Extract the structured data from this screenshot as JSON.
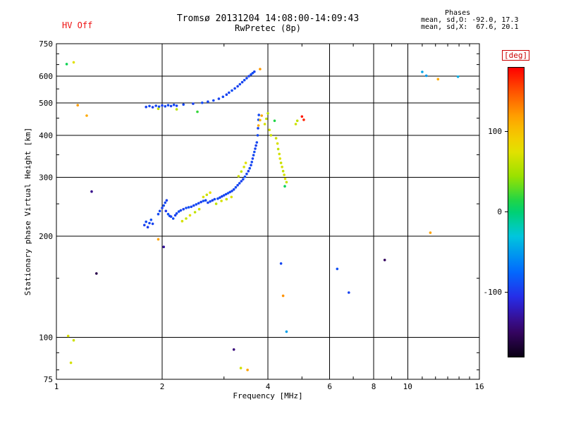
{
  "header": {
    "hv_status": "HV Off",
    "title": "Tromsø 20131204 14:08:00-14:09:43",
    "subtitle": "RwPretec (8p)",
    "phases": {
      "title": "Phases",
      "o_line": "mean, sd,O: -92.0, 17.3",
      "x_line": "mean, sd,X:  67.6, 20.1"
    }
  },
  "chart_data": {
    "type": "scatter",
    "title": "Tromsø 20131204 14:08:00-14:09:43",
    "subtitle": "RwPretec (8p)",
    "xlabel": "Frequency [MHz]",
    "ylabel": "Stationary phase Virtual Height [km]",
    "xscale": "log",
    "yscale": "log",
    "xlim": [
      1,
      16
    ],
    "ylim": [
      75,
      750
    ],
    "xticks": [
      1,
      2,
      4,
      6,
      8,
      10,
      16
    ],
    "yticks": [
      75,
      100,
      200,
      300,
      400,
      500,
      600,
      750
    ],
    "x_gridlines": [
      2,
      4,
      6,
      8,
      10
    ],
    "y_gridlines": [
      100,
      200,
      300,
      400,
      500,
      600
    ],
    "x_minor_ticks": [
      3,
      5,
      7,
      9,
      11,
      12,
      13,
      14,
      15
    ],
    "y_minor_ticks": [
      80,
      90,
      150,
      250,
      350,
      450,
      550,
      650,
      700
    ],
    "grid": true,
    "legend": "none",
    "colorbar": {
      "label": "[deg]",
      "min": -180,
      "max": 180,
      "ticks": [
        100,
        0,
        -100
      ],
      "label_color": "#cc0000"
    },
    "point_unit": "[frequency_MHz, virtual_height_km, phase_deg]",
    "points": [
      [
        1.78,
        216,
        -95
      ],
      [
        1.8,
        221,
        -90
      ],
      [
        1.82,
        213,
        -98
      ],
      [
        1.84,
        219,
        -92
      ],
      [
        1.86,
        224,
        -88
      ],
      [
        1.88,
        218,
        -94
      ],
      [
        1.95,
        233,
        -90
      ],
      [
        1.97,
        238,
        -93
      ],
      [
        2.0,
        243,
        -96
      ],
      [
        2.02,
        247,
        -89
      ],
      [
        2.04,
        252,
        -92
      ],
      [
        2.06,
        256,
        -95
      ],
      [
        2.05,
        238,
        -100
      ],
      [
        2.08,
        233,
        -87
      ],
      [
        2.1,
        230,
        -91
      ],
      [
        2.12,
        229,
        -94
      ],
      [
        2.15,
        226,
        -90
      ],
      [
        2.18,
        231,
        -96
      ],
      [
        2.2,
        234,
        -92
      ],
      [
        2.23,
        237,
        -89
      ],
      [
        2.26,
        239,
        -93
      ],
      [
        2.3,
        241,
        -95
      ],
      [
        2.34,
        243,
        -91
      ],
      [
        2.38,
        244,
        -88
      ],
      [
        2.42,
        245,
        -92
      ],
      [
        2.46,
        247,
        -95
      ],
      [
        2.5,
        249,
        -90
      ],
      [
        2.54,
        251,
        -93
      ],
      [
        2.58,
        253,
        -96
      ],
      [
        2.62,
        255,
        -89
      ],
      [
        2.66,
        256,
        -92
      ],
      [
        2.7,
        252,
        -94
      ],
      [
        2.74,
        254,
        -91
      ],
      [
        2.78,
        256,
        -95
      ],
      [
        2.82,
        258,
        -92
      ],
      [
        2.88,
        259,
        -90
      ],
      [
        2.92,
        261,
        -93
      ],
      [
        2.96,
        263,
        -96
      ],
      [
        3.0,
        265,
        -91
      ],
      [
        3.04,
        267,
        -94
      ],
      [
        3.08,
        269,
        -89
      ],
      [
        3.12,
        271,
        -92
      ],
      [
        3.16,
        273,
        -95
      ],
      [
        3.2,
        276,
        -93
      ],
      [
        3.24,
        280,
        -90
      ],
      [
        3.28,
        284,
        -94
      ],
      [
        3.32,
        288,
        -91
      ],
      [
        3.36,
        292,
        -95
      ],
      [
        3.4,
        296,
        -92
      ],
      [
        3.44,
        301,
        -89
      ],
      [
        3.48,
        307,
        -93
      ],
      [
        3.52,
        313,
        -96
      ],
      [
        3.55,
        319,
        -90
      ],
      [
        3.58,
        326,
        -94
      ],
      [
        3.6,
        333,
        -91
      ],
      [
        3.62,
        341,
        -95
      ],
      [
        3.64,
        349,
        -92
      ],
      [
        3.66,
        357,
        -89
      ],
      [
        3.68,
        365,
        -93
      ],
      [
        3.7,
        373,
        -96
      ],
      [
        3.72,
        381,
        -91
      ],
      [
        3.74,
        400,
        -90
      ],
      [
        3.75,
        420,
        -93
      ],
      [
        3.76,
        445,
        -88
      ],
      [
        3.77,
        460,
        -91
      ],
      [
        1.8,
        486,
        -94
      ],
      [
        1.84,
        489,
        -91
      ],
      [
        1.88,
        485,
        -96
      ],
      [
        1.92,
        490,
        -92
      ],
      [
        1.96,
        487,
        -89
      ],
      [
        2.0,
        491,
        -95
      ],
      [
        2.04,
        488,
        -92
      ],
      [
        2.08,
        492,
        -90
      ],
      [
        2.12,
        489,
        -94
      ],
      [
        2.16,
        493,
        -91
      ],
      [
        2.2,
        490,
        -93
      ],
      [
        2.3,
        494,
        -92
      ],
      [
        2.45,
        497,
        -95
      ],
      [
        2.6,
        500,
        -90
      ],
      [
        2.7,
        504,
        -93
      ],
      [
        2.8,
        508,
        -91
      ],
      [
        2.9,
        514,
        -94
      ],
      [
        2.98,
        521,
        -91
      ],
      [
        3.05,
        529,
        -95
      ],
      [
        3.1,
        536,
        -92
      ],
      [
        3.16,
        544,
        -89
      ],
      [
        3.22,
        552,
        -93
      ],
      [
        3.28,
        560,
        -96
      ],
      [
        3.33,
        568,
        -91
      ],
      [
        3.38,
        576,
        -94
      ],
      [
        3.43,
        584,
        -90
      ],
      [
        3.48,
        592,
        -93
      ],
      [
        3.53,
        600,
        -95
      ],
      [
        3.58,
        607,
        -92
      ],
      [
        3.62,
        613,
        -89
      ],
      [
        3.66,
        619,
        -93
      ],
      [
        2.28,
        222,
        70
      ],
      [
        2.34,
        226,
        64
      ],
      [
        2.4,
        231,
        76
      ],
      [
        2.48,
        236,
        60
      ],
      [
        2.55,
        241,
        68
      ],
      [
        2.62,
        262,
        72
      ],
      [
        2.68,
        266,
        65
      ],
      [
        2.74,
        270,
        78
      ],
      [
        2.85,
        250,
        62
      ],
      [
        2.95,
        255,
        70
      ],
      [
        3.05,
        258,
        66
      ],
      [
        3.15,
        262,
        74
      ],
      [
        3.3,
        302,
        68
      ],
      [
        3.36,
        312,
        62
      ],
      [
        3.42,
        322,
        70
      ],
      [
        3.46,
        331,
        76
      ],
      [
        4.22,
        392,
        66
      ],
      [
        4.26,
        378,
        72
      ],
      [
        4.28,
        364,
        60
      ],
      [
        4.31,
        352,
        68
      ],
      [
        4.33,
        341,
        74
      ],
      [
        4.36,
        331,
        64
      ],
      [
        4.39,
        322,
        70
      ],
      [
        4.42,
        313,
        62
      ],
      [
        4.45,
        305,
        68
      ],
      [
        4.48,
        297,
        75
      ],
      [
        4.52,
        290,
        65
      ],
      [
        3.92,
        432,
        70
      ],
      [
        3.96,
        448,
        64
      ],
      [
        4.0,
        465,
        58
      ],
      [
        4.04,
        415,
        72
      ],
      [
        4.08,
        400,
        66
      ],
      [
        4.8,
        432,
        66
      ],
      [
        4.85,
        442,
        60
      ],
      [
        1.08,
        101,
        72
      ],
      [
        1.12,
        98,
        66
      ],
      [
        1.1,
        84,
        70
      ],
      [
        3.35,
        81,
        68
      ],
      [
        1.12,
        660,
        75
      ],
      [
        1.95,
        480,
        62
      ],
      [
        2.2,
        478,
        58
      ],
      [
        3.76,
        428,
        112
      ],
      [
        3.8,
        444,
        105
      ],
      [
        3.84,
        458,
        118
      ],
      [
        1.15,
        492,
        120
      ],
      [
        1.22,
        458,
        115
      ],
      [
        1.95,
        196,
        118
      ],
      [
        3.8,
        630,
        122
      ],
      [
        4.42,
        133,
        125
      ],
      [
        11.6,
        205,
        118
      ],
      [
        12.2,
        588,
        115
      ],
      [
        3.5,
        80,
        118
      ],
      [
        5.0,
        455,
        172
      ],
      [
        5.06,
        445,
        168
      ],
      [
        1.07,
        652,
        10
      ],
      [
        4.18,
        442,
        15
      ],
      [
        4.47,
        282,
        8
      ],
      [
        2.52,
        470,
        20
      ],
      [
        11.0,
        618,
        -45
      ],
      [
        11.3,
        602,
        -50
      ],
      [
        13.9,
        598,
        -42
      ],
      [
        4.52,
        104,
        -48
      ],
      [
        4.36,
        166,
        -92
      ],
      [
        6.3,
        160,
        -88
      ],
      [
        6.8,
        136,
        -94
      ],
      [
        1.26,
        272,
        -135
      ],
      [
        1.3,
        155,
        -158
      ],
      [
        2.02,
        186,
        -130
      ],
      [
        8.6,
        170,
        -150
      ],
      [
        3.2,
        92,
        -140
      ]
    ]
  }
}
